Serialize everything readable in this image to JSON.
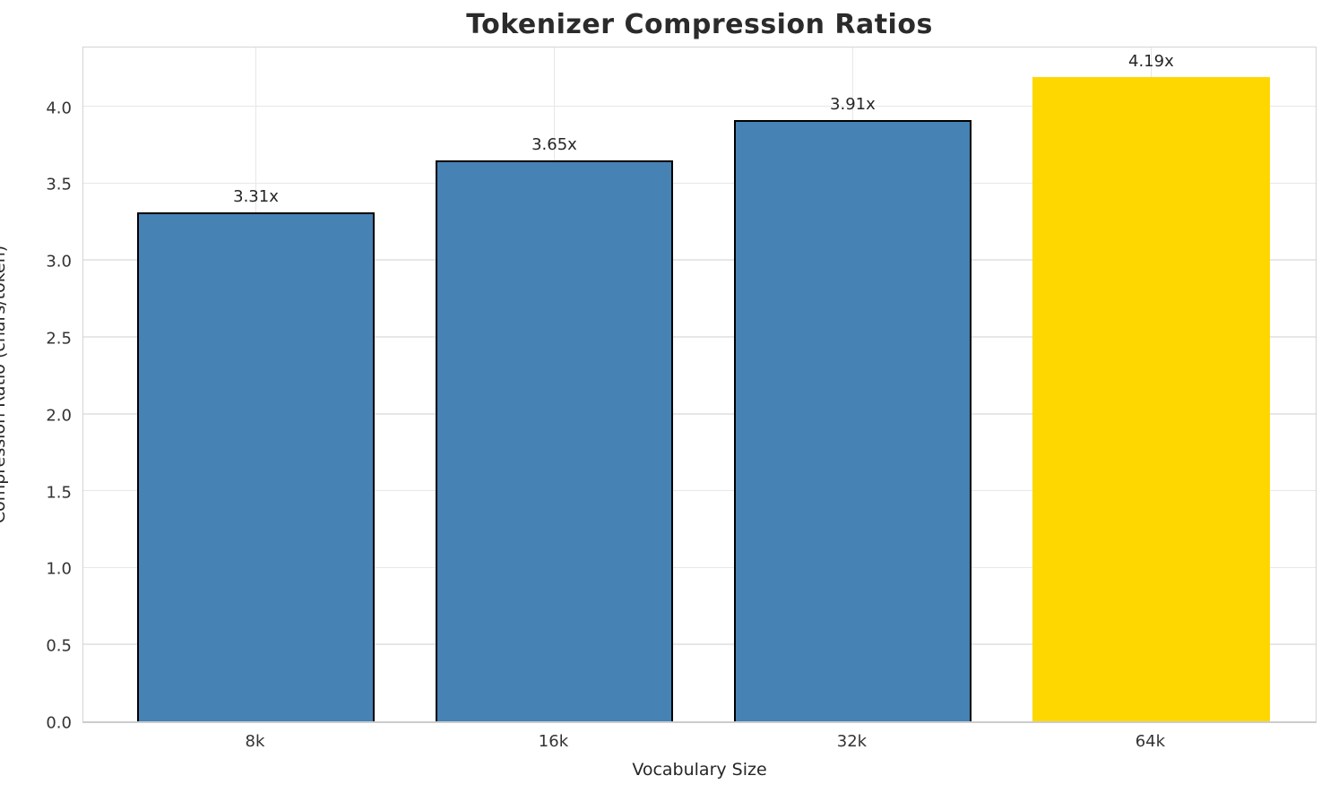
{
  "chart_data": {
    "type": "bar",
    "title": "Tokenizer Compression Ratios",
    "xlabel": "Vocabulary Size",
    "ylabel": "Compression Ratio (chars/token)",
    "categories": [
      "8k",
      "16k",
      "32k",
      "64k"
    ],
    "values": [
      3.31,
      3.65,
      3.91,
      4.19
    ],
    "value_labels": [
      "3.31x",
      "3.65x",
      "3.91x",
      "4.19x"
    ],
    "ylim": [
      0,
      4.4
    ],
    "yticks": [
      0.0,
      0.5,
      1.0,
      1.5,
      2.0,
      2.5,
      3.0,
      3.5,
      4.0
    ],
    "ytick_labels": [
      "0.0",
      "0.5",
      "1.0",
      "1.5",
      "2.0",
      "2.5",
      "3.0",
      "3.5",
      "4.0"
    ],
    "grid": true,
    "legend": false,
    "bar_colors": [
      "#4682B4",
      "#4682B4",
      "#4682B4",
      "#FFD700"
    ],
    "bar_edge_colors": [
      "#000000",
      "#000000",
      "#000000",
      "none"
    ],
    "highlight_index": 3
  },
  "colors": {
    "background": "#ffffff",
    "bar_blue": "#4682B4",
    "bar_gold": "#FFD700",
    "bar_edge": "#000000",
    "grid": "#e7e7e7",
    "spine": "#d4d4d4",
    "tick_text": "#333333",
    "title_text": "#2b2b2b"
  }
}
